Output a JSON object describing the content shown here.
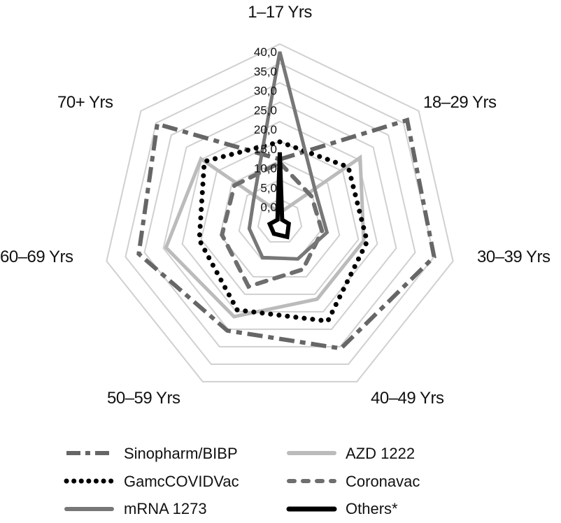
{
  "chart_data": {
    "type": "radar",
    "title": "",
    "categories": [
      "1–17 Yrs",
      "18–29 Yrs",
      "30–39 Yrs",
      "40–49 Yrs",
      "50–59 Yrs",
      "60–69 Yrs",
      "70+ Yrs"
    ],
    "radial_ticks": [
      "0,0",
      "5,0",
      "10,0",
      "15,0",
      "20,0",
      "25,0",
      "30,0",
      "35,0",
      "40,0"
    ],
    "rlim": [
      -5.8,
      40
    ],
    "grid": true,
    "legend_position": "bottom",
    "series": [
      {
        "name": "Sinopharm/BIBP",
        "style": "dash-dot",
        "color": "#666666",
        "values": [
          10.3,
          36.2,
          35.0,
          30.5,
          25.4,
          31.5,
          34.6
        ]
      },
      {
        "name": "AZD 1222",
        "style": "solid",
        "color": "#bbbbbb",
        "values": [
          -3.5,
          20.7,
          16.4,
          16.4,
          21.4,
          24.3,
          20.2
        ]
      },
      {
        "name": "GamcCOVIDVac",
        "style": "dotted",
        "color": "#000000",
        "values": [
          14.8,
          16.8,
          17.3,
          22.7,
          19.5,
          15.5,
          19.1
        ]
      },
      {
        "name": "Coronavac",
        "style": "dashed",
        "color": "#6e6e6e",
        "values": [
          9.4,
          4.7,
          5.4,
          7.9,
          12.8,
          9.5,
          9.2
        ]
      },
      {
        "name": "mRNA 1273",
        "style": "solid",
        "color": "#777777",
        "values": [
          38.0,
          6.1,
          6.7,
          4.9,
          4.5,
          2.3,
          2.9
        ]
      },
      {
        "name": "Others*",
        "style": "solid",
        "color": "#000000",
        "values": [
          12.1,
          -5.0,
          -3.4,
          -1.4,
          -2.3,
          -3.1,
          -5.0
        ]
      }
    ]
  }
}
